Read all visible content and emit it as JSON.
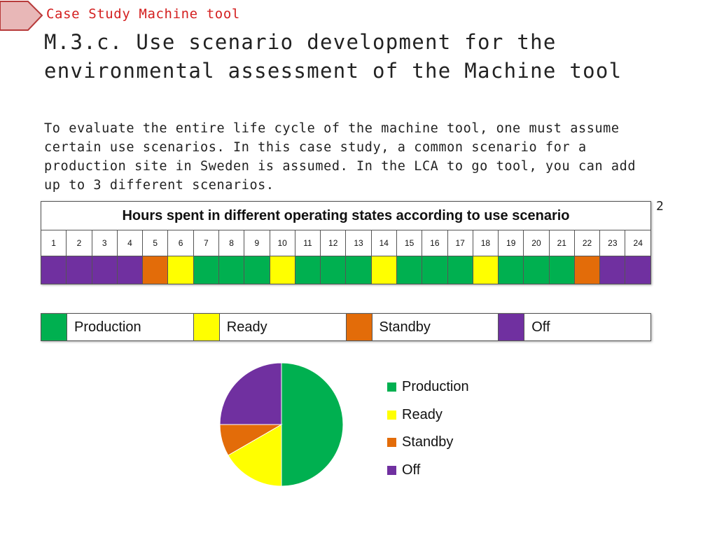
{
  "breadcrumb": "Case Study Machine tool",
  "title": "M.3.c. Use scenario development for the environmental assessment of the Machine tool",
  "body": "To evaluate the entire life cycle of the machine tool, one must assume certain use scenarios. In this case study, a common scenario for a production site in Sweden is assumed. In the LCA to go tool, you can add up to 3 different scenarios.",
  "page_number": "2",
  "colors": {
    "Production": "#00b050",
    "Ready": "#ffff00",
    "Standby": "#e36c09",
    "Off": "#7030a0"
  },
  "schedule": {
    "title": "Hours spent in different operating states according to use scenario",
    "hours": [
      "1",
      "2",
      "3",
      "4",
      "5",
      "6",
      "7",
      "8",
      "9",
      "10",
      "11",
      "12",
      "13",
      "14",
      "15",
      "16",
      "17",
      "18",
      "19",
      "20",
      "21",
      "22",
      "23",
      "24"
    ],
    "states": [
      "Off",
      "Off",
      "Off",
      "Off",
      "Standby",
      "Ready",
      "Production",
      "Production",
      "Production",
      "Ready",
      "Production",
      "Production",
      "Production",
      "Ready",
      "Production",
      "Production",
      "Production",
      "Ready",
      "Production",
      "Production",
      "Production",
      "Standby",
      "Off",
      "Off"
    ]
  },
  "legend": [
    "Production",
    "Ready",
    "Standby",
    "Off"
  ],
  "chart_data": {
    "type": "pie",
    "categories": [
      "Production",
      "Ready",
      "Standby",
      "Off"
    ],
    "values": [
      12,
      4,
      2,
      6
    ],
    "legend_position": "right"
  }
}
